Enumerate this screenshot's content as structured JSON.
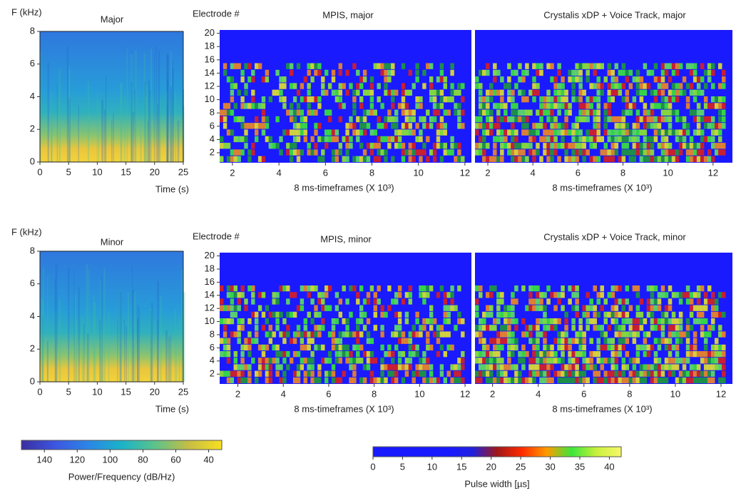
{
  "chart_data": [
    {
      "type": "spectrogram",
      "title": "Major",
      "ylabel": "F (kHz)",
      "xlabel": "Time (s)",
      "xlim": [
        0,
        25
      ],
      "ylim": [
        0,
        8
      ],
      "xticks": [
        0,
        5,
        10,
        15,
        20,
        25
      ],
      "yticks": [
        0,
        2,
        4,
        6,
        8
      ]
    },
    {
      "type": "electrodogram",
      "title": "MPIS, major",
      "ylabel": "Electrode #",
      "xlabel": "8 ms-timeframes (X 10³)",
      "xlim": [
        1.45,
        12.28
      ],
      "ylim": [
        0.5,
        20.5
      ],
      "xticks": [
        2,
        4,
        6,
        8,
        10,
        12
      ],
      "yticks": [
        2,
        4,
        6,
        8,
        10,
        12,
        14,
        16,
        18,
        20
      ]
    },
    {
      "type": "electrodogram",
      "title": "Crystalis xDP + Voice Track, major",
      "xlabel": "8 ms-timeframes (X 10³)",
      "xlim": [
        1.43,
        12.86
      ],
      "ylim": [
        0.5,
        20.5
      ],
      "xticks": [
        2,
        4,
        6,
        8,
        10,
        12
      ]
    },
    {
      "type": "spectrogram",
      "title": "Minor",
      "ylabel": "F (kHz)",
      "xlabel": "Time (s)",
      "xlim": [
        0,
        25
      ],
      "ylim": [
        0,
        8
      ],
      "xticks": [
        0,
        5,
        10,
        15,
        20,
        25
      ],
      "yticks": [
        0,
        2,
        4,
        6,
        8
      ]
    },
    {
      "type": "electrodogram",
      "title": "MPIS, minor",
      "ylabel": "Electrode #",
      "xlabel": "8 ms-timeframes (X 10³)",
      "xlim": [
        1.2,
        12.28
      ],
      "ylim": [
        0.5,
        20.5
      ],
      "xticks": [
        2,
        4,
        6,
        8,
        10,
        12
      ],
      "yticks": [
        2,
        4,
        6,
        8,
        10,
        12,
        14,
        16,
        18,
        20
      ]
    },
    {
      "type": "electrodogram",
      "title": "Crystalis xDP + Voice Track, minor",
      "xlabel": "8 ms-timeframes (X 10³)",
      "xlim": [
        1.23,
        12.5
      ],
      "ylim": [
        0.5,
        20.5
      ],
      "xticks": [
        2,
        4,
        6,
        8,
        10,
        12
      ]
    },
    {
      "type": "colorbar",
      "label": "Power/Frequency (dB/Hz)",
      "xlim": [
        154,
        32
      ],
      "xticks": [
        140,
        120,
        100,
        80,
        60,
        40
      ],
      "colors": [
        "#3a2fa0",
        "#3d55e0",
        "#2b86e6",
        "#1ab3c8",
        "#5cc38a",
        "#c6bd45",
        "#f8e020"
      ]
    },
    {
      "type": "colorbar",
      "label": "Pulse width [µs]",
      "xlim": [
        0,
        42
      ],
      "xticks": [
        0,
        5,
        10,
        15,
        20,
        25,
        30,
        35,
        40
      ],
      "colors": [
        "#1a1aff",
        "#1a1aff",
        "#1a1aff",
        "#1a1aff",
        "#2020e0",
        "#a01818",
        "#ff2a00",
        "#ff9a00",
        "#3ce63c",
        "#c8f03c",
        "#f8f86a"
      ]
    }
  ]
}
